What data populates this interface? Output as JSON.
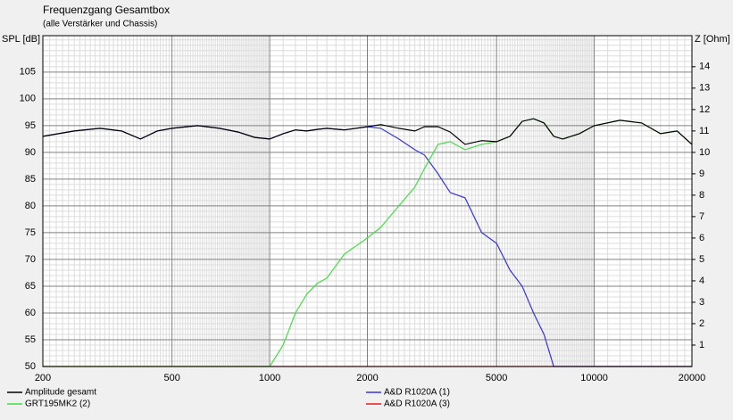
{
  "chart_data": {
    "type": "line",
    "title": "Frequenzgang Gesamtbox",
    "subtitle": "(alle Verstärker und Chassis)",
    "y_label": "SPL [dB]",
    "y2_label": "Z [Ohm]",
    "x_log": true,
    "grid": true,
    "x": [
      200,
      250,
      300,
      350,
      400,
      450,
      500,
      600,
      700,
      800,
      900,
      1000,
      1100,
      1200,
      1300,
      1400,
      1500,
      1700,
      2000,
      2200,
      2500,
      2800,
      3000,
      3300,
      3600,
      4000,
      4500,
      5000,
      5500,
      6000,
      6500,
      7000,
      7500,
      8000,
      9000,
      10000,
      12000,
      14000,
      16000,
      18000,
      20000
    ],
    "series": [
      {
        "name": "A&D R1020A (3)",
        "color": "#e02020",
        "values": [
          50,
          50,
          50,
          50,
          50,
          50,
          50,
          50,
          50,
          50,
          50,
          50,
          50,
          50,
          50,
          50,
          50,
          50,
          50,
          50,
          50,
          50,
          50,
          50,
          50,
          50,
          50,
          50,
          50,
          50,
          50,
          50,
          50,
          50,
          50,
          50,
          50,
          50,
          50,
          50,
          50
        ]
      },
      {
        "name": "A&D R1020A (1)",
        "color": "#3434e0",
        "values": [
          93,
          94,
          94.5,
          94,
          92.5,
          94,
          94.5,
          95,
          94.5,
          93.8,
          92.8,
          92.5,
          93.5,
          94.2,
          94,
          94.3,
          94.5,
          94.2,
          94.8,
          94.5,
          92.5,
          90.5,
          89.5,
          86,
          82.5,
          81.5,
          75,
          73,
          68,
          65,
          60,
          56,
          50,
          50,
          50,
          50,
          50,
          50,
          50,
          50,
          50
        ]
      },
      {
        "name": "GRT195MK2 (2)",
        "color": "#44dd44",
        "values": [
          50,
          50,
          50,
          50,
          50,
          50,
          50,
          50,
          50,
          50,
          50,
          50,
          54,
          60,
          63.5,
          65.5,
          66.5,
          71,
          74,
          76,
          80,
          83.5,
          87,
          91.5,
          92,
          90.5,
          91.5,
          92,
          93,
          95.8,
          96.3,
          95.5,
          93,
          92.5,
          93.5,
          95,
          96,
          95.5,
          93.5,
          94,
          91.5
        ]
      },
      {
        "name": "Amplitude gesamt",
        "color": "#000000",
        "values": [
          93,
          94,
          94.5,
          94,
          92.5,
          94,
          94.5,
          95,
          94.5,
          93.8,
          92.8,
          92.5,
          93.5,
          94.2,
          94,
          94.3,
          94.5,
          94.2,
          94.8,
          95.2,
          94.5,
          94,
          94.8,
          94.8,
          93.8,
          91.5,
          92.2,
          92,
          93,
          95.8,
          96.3,
          95.5,
          93,
          92.5,
          93.5,
          95,
          96,
          95.5,
          93.5,
          94,
          91.5
        ]
      }
    ],
    "xlim": [
      200,
      20000
    ],
    "xticks": [
      200,
      500,
      1000,
      2000,
      5000,
      10000,
      20000
    ],
    "ylim": [
      50,
      111.8
    ],
    "yticks": [
      50,
      55,
      60,
      65,
      70,
      75,
      80,
      85,
      90,
      95,
      100,
      105
    ],
    "y2lim": [
      0,
      15.45
    ],
    "y2ticks": [
      1,
      2,
      3,
      4,
      5,
      6,
      7,
      8,
      9,
      10,
      11,
      12,
      13,
      14
    ]
  }
}
